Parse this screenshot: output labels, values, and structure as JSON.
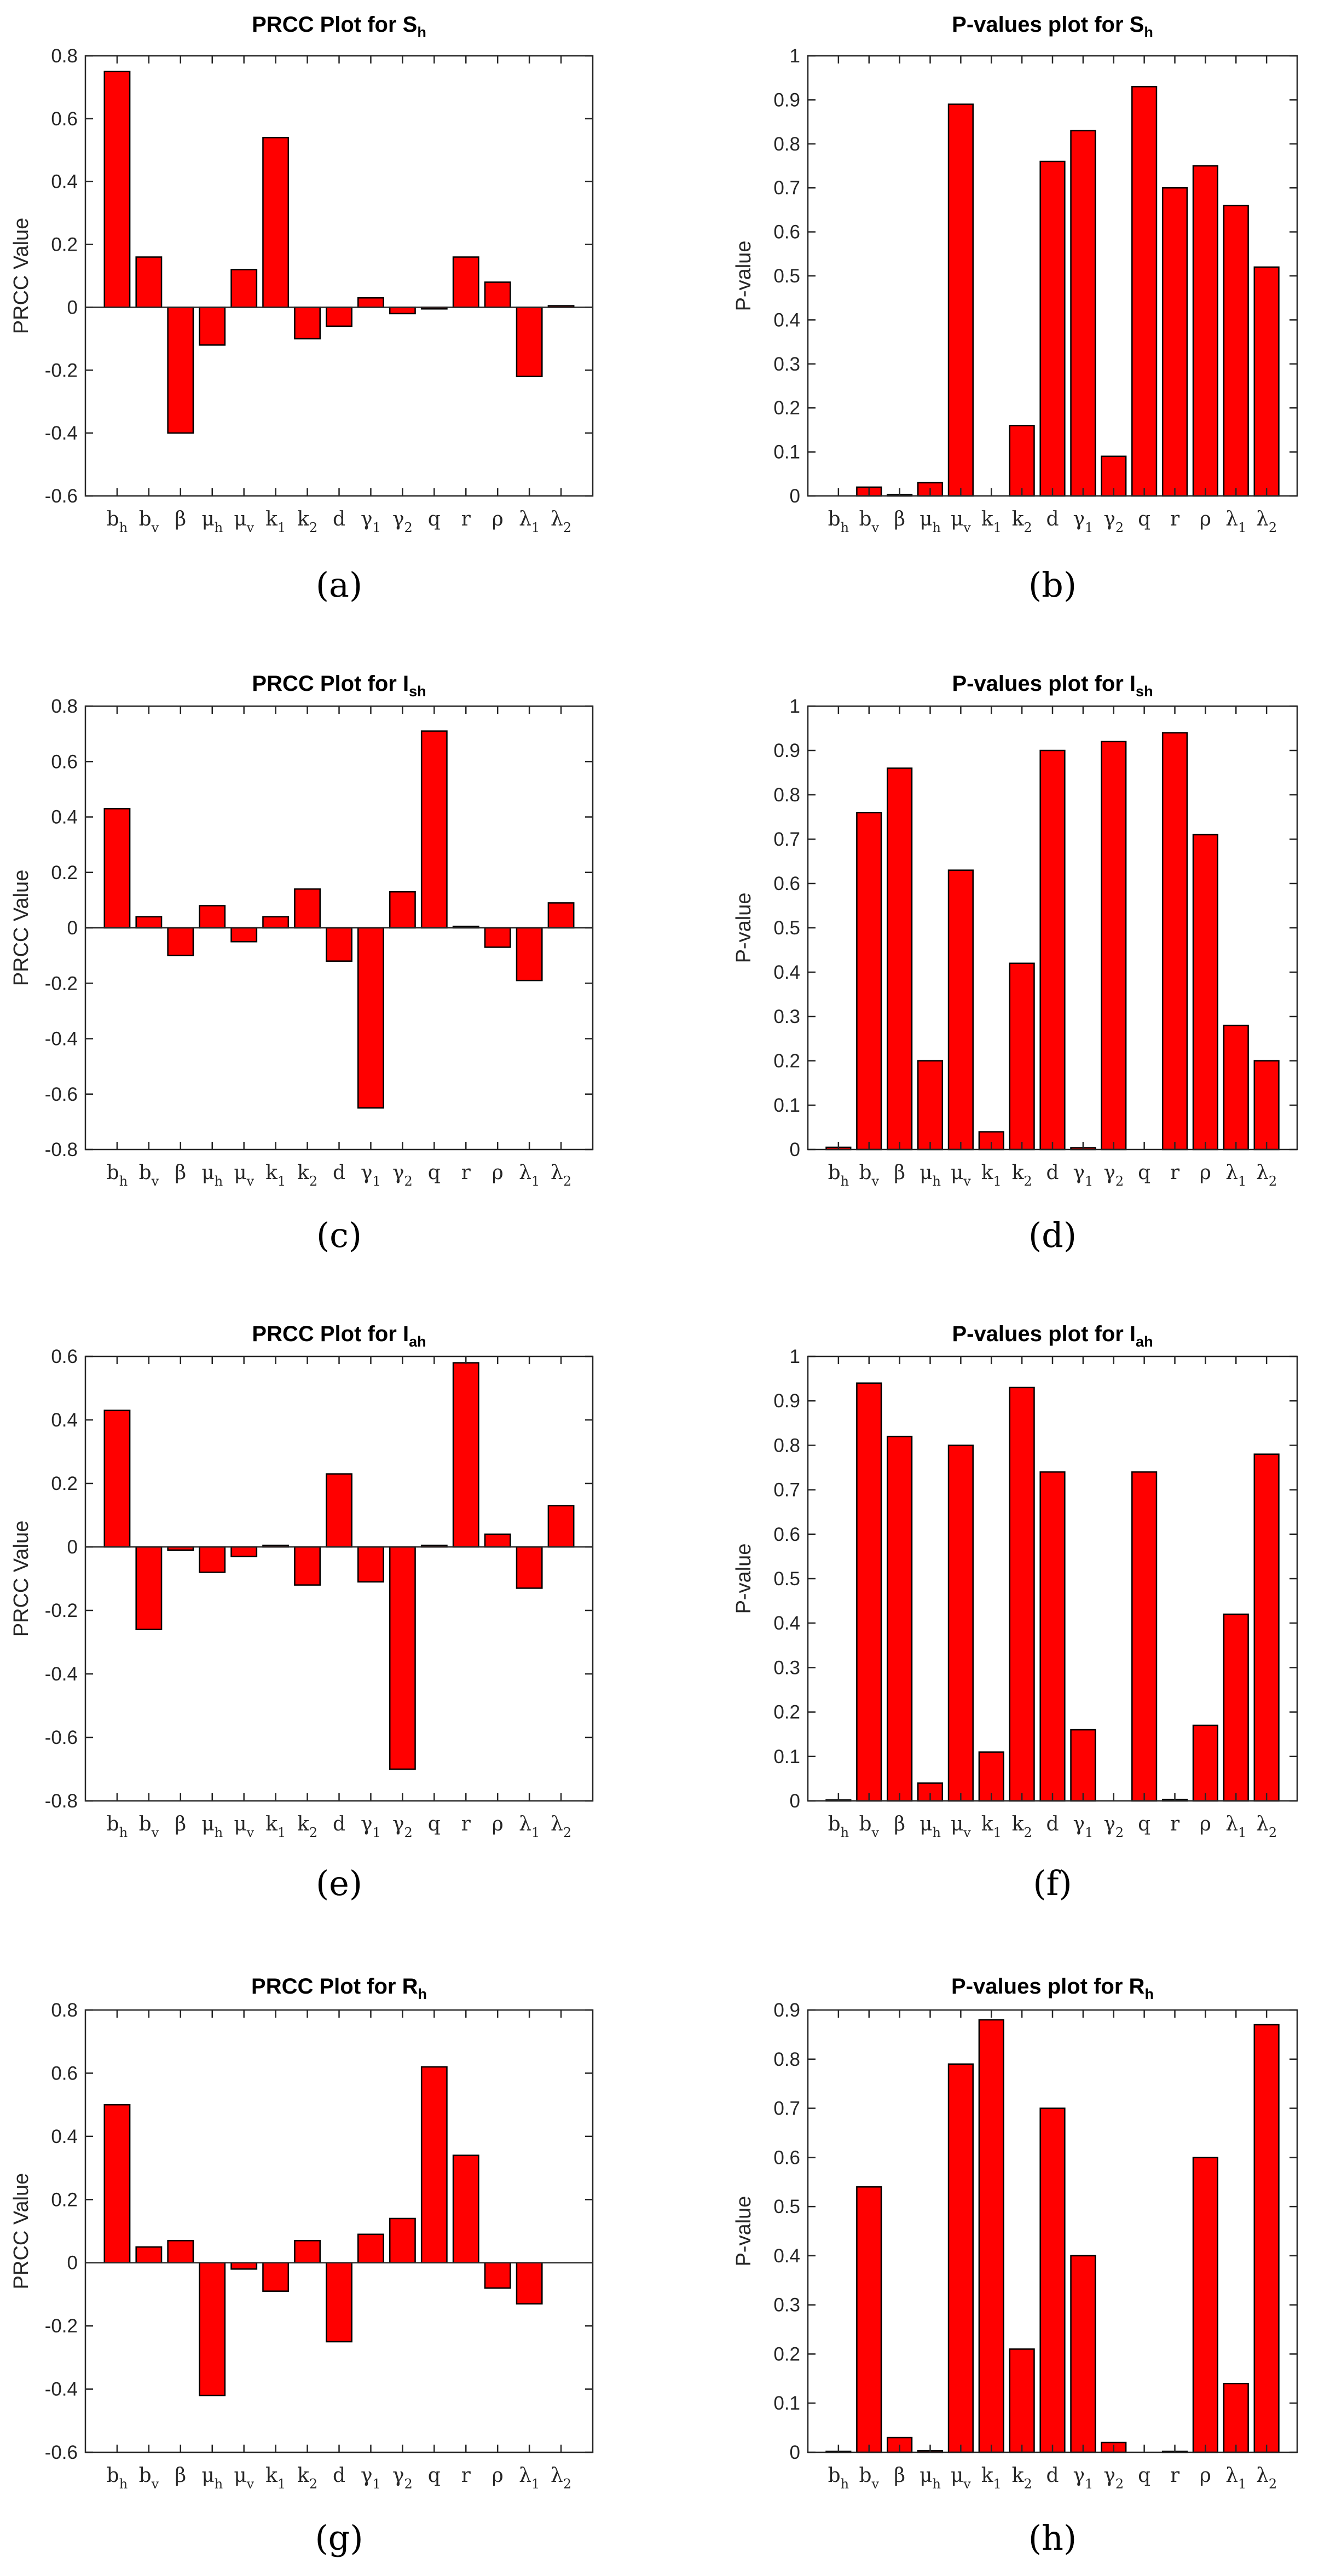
{
  "figure_labels": [
    "(a)",
    "(b)",
    "(c)",
    "(d)",
    "(e)",
    "(f)",
    "(g)",
    "(h)"
  ],
  "colors": {
    "bar_fill": "#ff0000",
    "bar_edge": "#000000",
    "axis": "#262626"
  },
  "categories": [
    {
      "base": "b",
      "sub": "h",
      "greek": false
    },
    {
      "base": "b",
      "sub": "v",
      "greek": false
    },
    {
      "base": "β",
      "sub": "",
      "greek": true
    },
    {
      "base": "μ",
      "sub": "h",
      "greek": true
    },
    {
      "base": "μ",
      "sub": "v",
      "greek": true
    },
    {
      "base": "k",
      "sub": "1",
      "greek": false
    },
    {
      "base": "k",
      "sub": "2",
      "greek": false
    },
    {
      "base": "d",
      "sub": "",
      "greek": false
    },
    {
      "base": "γ",
      "sub": "1",
      "greek": true
    },
    {
      "base": "γ",
      "sub": "2",
      "greek": true
    },
    {
      "base": "q",
      "sub": "",
      "greek": false
    },
    {
      "base": "r",
      "sub": "",
      "greek": false
    },
    {
      "base": "ρ",
      "sub": "",
      "greek": true
    },
    {
      "base": "λ",
      "sub": "1",
      "greek": true
    },
    {
      "base": "λ",
      "sub": "2",
      "greek": true
    }
  ],
  "chart_data": [
    {
      "type": "bar",
      "title": "PRCC Plot for S",
      "title_sub": "h",
      "xlabel": "",
      "ylabel": "PRCC Value",
      "ylim": [
        -0.6,
        0.8
      ],
      "yticks": [
        "0.8",
        "0.6",
        "0.4",
        "0.2",
        "0",
        "-0.2",
        "-0.4",
        "-0.6"
      ],
      "values": [
        0.75,
        0.16,
        -0.4,
        -0.12,
        0.12,
        0.54,
        -0.1,
        -0.06,
        0.03,
        -0.02,
        -0.005,
        0.16,
        0.08,
        -0.22,
        0.005
      ]
    },
    {
      "type": "bar",
      "title": "P-values plot for S",
      "title_sub": "h",
      "xlabel": "",
      "ylabel": "P-value",
      "ylim": [
        0,
        1
      ],
      "yticks": [
        "1",
        "0.9",
        "0.8",
        "0.7",
        "0.6",
        "0.5",
        "0.4",
        "0.3",
        "0.2",
        "0.1",
        "0"
      ],
      "values": [
        0.0,
        0.02,
        0.003,
        0.03,
        0.89,
        0.0,
        0.16,
        0.76,
        0.83,
        0.09,
        0.93,
        0.7,
        0.75,
        0.66,
        0.52
      ]
    },
    {
      "type": "bar",
      "title": "PRCC Plot for I",
      "title_sub": "sh",
      "xlabel": "",
      "ylabel": "PRCC Value",
      "ylim": [
        -0.8,
        0.8
      ],
      "yticks": [
        "0.8",
        "0.6",
        "0.4",
        "0.2",
        "0",
        "-0.2",
        "-0.4",
        "-0.6",
        "-0.8"
      ],
      "values": [
        0.43,
        0.04,
        -0.1,
        0.08,
        -0.05,
        0.04,
        0.14,
        -0.12,
        -0.65,
        0.13,
        0.71,
        0.005,
        -0.07,
        -0.19,
        0.09
      ]
    },
    {
      "type": "bar",
      "title": "P-values plot for I",
      "title_sub": "sh",
      "xlabel": "",
      "ylabel": "P-value",
      "ylim": [
        0,
        1
      ],
      "yticks": [
        "1",
        "0.9",
        "0.8",
        "0.7",
        "0.6",
        "0.5",
        "0.4",
        "0.3",
        "0.2",
        "0.1",
        "0"
      ],
      "values": [
        0.005,
        0.76,
        0.86,
        0.2,
        0.63,
        0.04,
        0.42,
        0.9,
        0.004,
        0.92,
        0.0,
        0.94,
        0.71,
        0.28,
        0.2
      ]
    },
    {
      "type": "bar",
      "title": "PRCC Plot for I",
      "title_sub": "ah",
      "xlabel": "",
      "ylabel": "PRCC Value",
      "ylim": [
        -0.8,
        0.6
      ],
      "yticks": [
        "0.6",
        "0.4",
        "0.2",
        "0",
        "-0.2",
        "-0.4",
        "-0.6",
        "-0.8"
      ],
      "values": [
        0.43,
        -0.26,
        -0.01,
        -0.08,
        -0.03,
        0.005,
        -0.12,
        0.23,
        -0.11,
        -0.7,
        0.005,
        0.58,
        0.04,
        -0.13,
        0.13
      ]
    },
    {
      "type": "bar",
      "title": "P-values plot for I",
      "title_sub": "ah",
      "xlabel": "",
      "ylabel": "P-value",
      "ylim": [
        0,
        1
      ],
      "yticks": [
        "1",
        "0.9",
        "0.8",
        "0.7",
        "0.6",
        "0.5",
        "0.4",
        "0.3",
        "0.2",
        "0.1",
        "0"
      ],
      "values": [
        0.002,
        0.94,
        0.82,
        0.04,
        0.8,
        0.11,
        0.93,
        0.74,
        0.16,
        0.0,
        0.74,
        0.003,
        0.17,
        0.42,
        0.78
      ]
    },
    {
      "type": "bar",
      "title": "PRCC Plot for R",
      "title_sub": "h",
      "xlabel": "",
      "ylabel": "PRCC Value",
      "ylim": [
        -0.6,
        0.8
      ],
      "yticks": [
        "0.8",
        "0.6",
        "0.4",
        "0.2",
        "0",
        "-0.2",
        "-0.4",
        "-0.6"
      ],
      "values": [
        0.5,
        0.05,
        0.07,
        -0.42,
        -0.02,
        -0.09,
        0.07,
        -0.25,
        0.09,
        0.14,
        0.62,
        0.34,
        -0.08,
        -0.13,
        0.0
      ]
    },
    {
      "type": "bar",
      "title": "P-values plot for R",
      "title_sub": "h",
      "xlabel": "",
      "ylabel": "P-value",
      "ylim": [
        0,
        0.9
      ],
      "yticks": [
        "0.9",
        "0.8",
        "0.7",
        "0.6",
        "0.5",
        "0.4",
        "0.3",
        "0.2",
        "0.1",
        "0"
      ],
      "values": [
        0.002,
        0.54,
        0.03,
        0.003,
        0.79,
        0.88,
        0.21,
        0.7,
        0.4,
        0.02,
        0.0,
        0.002,
        0.6,
        0.14,
        0.87
      ]
    }
  ]
}
